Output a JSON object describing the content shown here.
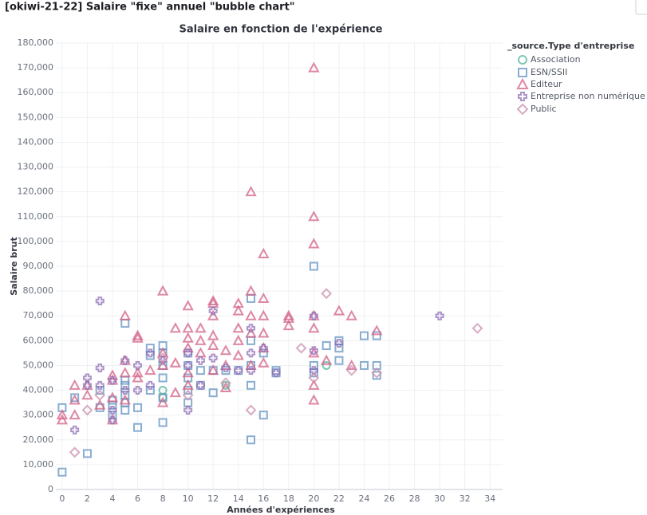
{
  "panel_title": "[okiwi-21-22] Salaire \"fixe\" annuel \"bubble chart\"",
  "chart_data": {
    "type": "scatter",
    "title": "Salaire en fonction de l'expérience",
    "x_label": "Années d'expériences",
    "y_label": "Salaire brut",
    "legend_title": "_source.Type d'entreprise",
    "legend": "top-right",
    "grid": true,
    "xlim": [
      -0.5,
      35
    ],
    "xticks": [
      0,
      2,
      4,
      6,
      8,
      10,
      12,
      14,
      16,
      18,
      20,
      22,
      24,
      26,
      28,
      30,
      32,
      34
    ],
    "ylim": [
      0,
      180000
    ],
    "yticks": [
      0,
      {
        "value": 10000,
        "label": "10,000"
      },
      {
        "value": 20000,
        "label": "20,000"
      },
      {
        "value": 30000,
        "label": "30,000"
      },
      {
        "value": 40000,
        "label": "40,000"
      },
      {
        "value": 50000,
        "label": "50,000"
      },
      {
        "value": 60000,
        "label": "60,000"
      },
      {
        "value": 70000,
        "label": "70,000"
      },
      {
        "value": 80000,
        "label": "80,000"
      },
      {
        "value": 90000,
        "label": "90,000"
      },
      {
        "value": 100000,
        "label": "100,000"
      },
      {
        "value": 110000,
        "label": "110,000"
      },
      {
        "value": 120000,
        "label": "120,000"
      },
      {
        "value": 130000,
        "label": "130,000"
      },
      {
        "value": 140000,
        "label": "140,000"
      },
      {
        "value": 150000,
        "label": "150,000"
      },
      {
        "value": 160000,
        "label": "160,000"
      },
      {
        "value": 170000,
        "label": "170,000"
      },
      {
        "value": 180000,
        "label": "180,000"
      }
    ],
    "series": [
      {
        "name": "Association",
        "color": "#54b399",
        "marker": "circle",
        "x": [
          8,
          8,
          13,
          21
        ],
        "values": [
          40000,
          37000,
          42000,
          50000
        ]
      },
      {
        "name": "ESN/SSII",
        "color": "#6092c0",
        "marker": "square",
        "x": [
          0,
          0,
          1,
          2,
          3,
          3,
          4,
          4,
          4,
          5,
          5,
          5,
          5,
          5,
          5,
          6,
          6,
          7,
          7,
          7,
          8,
          8,
          8,
          8,
          8,
          8,
          10,
          10,
          10,
          10,
          10,
          11,
          11,
          12,
          12,
          13,
          14,
          15,
          15,
          15,
          15,
          15,
          16,
          16,
          17,
          17,
          20,
          20,
          20,
          21,
          22,
          22,
          22,
          24,
          24,
          25,
          25,
          25
        ],
        "values": [
          33000,
          7000,
          37000,
          14500,
          33000,
          40000,
          30000,
          34000,
          36000,
          67000,
          32000,
          35000,
          38000,
          42000,
          44000,
          25000,
          33000,
          57000,
          40000,
          54000,
          27000,
          37000,
          45000,
          50000,
          55000,
          58000,
          35000,
          40000,
          45000,
          50000,
          55000,
          42000,
          48000,
          39000,
          48000,
          48000,
          48000,
          20000,
          42000,
          50000,
          60000,
          77000,
          30000,
          55000,
          48000,
          47000,
          90000,
          50000,
          47000,
          58000,
          52000,
          57000,
          60000,
          50000,
          62000,
          46000,
          50000,
          62000
        ]
      },
      {
        "name": "Editeur",
        "color": "#d36086",
        "marker": "triangle",
        "x": [
          0,
          0,
          1,
          1,
          1,
          2,
          2,
          3,
          4,
          4,
          4,
          4,
          5,
          5,
          5,
          5,
          6,
          6,
          6,
          6,
          7,
          8,
          8,
          8,
          8,
          9,
          9,
          9,
          10,
          10,
          10,
          10,
          10,
          10,
          11,
          11,
          11,
          12,
          12,
          12,
          12,
          12,
          12,
          13,
          13,
          13,
          14,
          14,
          14,
          14,
          14,
          15,
          15,
          15,
          15,
          15,
          16,
          16,
          16,
          16,
          16,
          16,
          18,
          18,
          18,
          20,
          20,
          20,
          20,
          20,
          20,
          20,
          20,
          21,
          22,
          23,
          23,
          25
        ],
        "values": [
          28000,
          30000,
          30000,
          36000,
          42000,
          38000,
          42000,
          34000,
          28000,
          37000,
          44000,
          46000,
          36000,
          47000,
          52000,
          70000,
          45000,
          47000,
          61000,
          62000,
          48000,
          35000,
          50000,
          55000,
          80000,
          39000,
          51000,
          65000,
          42000,
          47000,
          57000,
          61000,
          65000,
          74000,
          55000,
          60000,
          65000,
          48000,
          58000,
          62000,
          70000,
          75000,
          76000,
          41000,
          50000,
          56000,
          54000,
          60000,
          65000,
          72000,
          75000,
          50000,
          63000,
          70000,
          80000,
          120000,
          51000,
          57000,
          63000,
          70000,
          77000,
          95000,
          66000,
          69000,
          70000,
          36000,
          42000,
          55000,
          65000,
          70000,
          99000,
          110000,
          170000,
          52000,
          72000,
          50000,
          70000,
          64000
        ]
      },
      {
        "name": "Entreprise non numérique",
        "color": "#9170b8",
        "marker": "cross",
        "x": [
          1,
          2,
          2,
          3,
          3,
          3,
          4,
          4,
          4,
          5,
          5,
          6,
          6,
          7,
          7,
          8,
          10,
          10,
          10,
          11,
          11,
          12,
          12,
          13,
          14,
          15,
          15,
          15,
          16,
          17,
          20,
          20,
          20,
          22,
          30
        ],
        "values": [
          24000,
          42000,
          45000,
          76000,
          49000,
          42000,
          28000,
          32000,
          44000,
          40000,
          52000,
          40000,
          50000,
          42000,
          55000,
          52000,
          32000,
          50000,
          55000,
          42000,
          52000,
          72000,
          53000,
          49000,
          48000,
          48000,
          55000,
          65000,
          57000,
          47000,
          56000,
          70000,
          48000,
          59000,
          70000
        ]
      },
      {
        "name": "Public",
        "color": "#ca8eae",
        "marker": "diamond",
        "x": [
          1,
          2,
          3,
          8,
          10,
          13,
          15,
          19,
          20,
          21,
          23,
          25,
          33
        ],
        "values": [
          15000,
          32000,
          38000,
          53000,
          38000,
          43000,
          32000,
          57000,
          45000,
          79000,
          48000,
          47000,
          65000
        ]
      }
    ]
  }
}
